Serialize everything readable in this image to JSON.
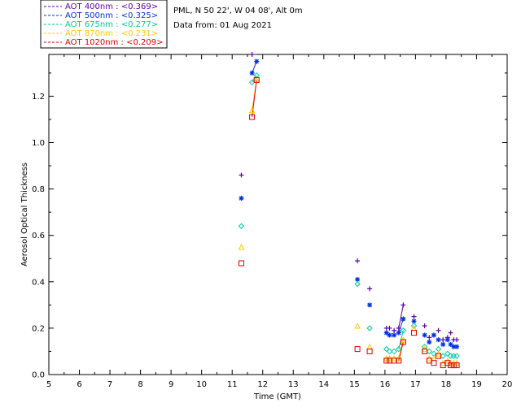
{
  "chart_data": {
    "type": "scatter",
    "title": "",
    "xlabel": "Time (GMT)",
    "ylabel": "Aerosol Optical Thickness",
    "xlim": [
      5,
      20
    ],
    "ylim": [
      0,
      1.38
    ],
    "xticks": [
      "5",
      "6",
      "7",
      "8",
      "9",
      "10",
      "11",
      "12",
      "13",
      "14",
      "15",
      "16",
      "17",
      "18",
      "19",
      "20"
    ],
    "yticks": [
      "0.0",
      "0.2",
      "0.4",
      "0.6",
      "0.8",
      "1.0",
      "1.2"
    ],
    "site_info": "PML, N 50 22', W 04 08', Alt 0m",
    "date_info": "Data from: 01 Aug 2021",
    "series": [
      {
        "name": "AOT  400nm : <0.369>",
        "color": "#5a00a8",
        "marker": "plus",
        "points": [
          [
            11.3,
            0.86
          ],
          [
            11.65,
            1.38
          ],
          [
            11.8,
            1.39
          ],
          [
            15.1,
            0.49
          ],
          [
            15.5,
            0.37
          ],
          [
            16.05,
            0.2
          ],
          [
            16.15,
            0.2
          ],
          [
            16.3,
            0.19
          ],
          [
            16.45,
            0.2
          ],
          [
            16.6,
            0.3
          ],
          [
            16.95,
            0.25
          ],
          [
            17.3,
            0.21
          ],
          [
            17.45,
            0.16
          ],
          [
            17.6,
            0.17
          ],
          [
            17.75,
            0.19
          ],
          [
            17.9,
            0.15
          ],
          [
            18.05,
            0.16
          ],
          [
            18.15,
            0.18
          ],
          [
            18.25,
            0.15
          ],
          [
            18.35,
            0.15
          ]
        ],
        "lines": [
          [
            [
              11.65,
              1.38
            ],
            [
              11.8,
              1.39
            ]
          ],
          [
            [
              16.45,
              0.2
            ],
            [
              16.6,
              0.3
            ]
          ]
        ]
      },
      {
        "name": "AOT  500nm : <0.325>",
        "color": "#0033e0",
        "marker": "asterisk",
        "points": [
          [
            11.3,
            0.76
          ],
          [
            11.65,
            1.3
          ],
          [
            11.8,
            1.35
          ],
          [
            15.1,
            0.41
          ],
          [
            15.5,
            0.3
          ],
          [
            16.05,
            0.18
          ],
          [
            16.15,
            0.17
          ],
          [
            16.3,
            0.17
          ],
          [
            16.45,
            0.18
          ],
          [
            16.6,
            0.24
          ],
          [
            16.95,
            0.23
          ],
          [
            17.3,
            0.17
          ],
          [
            17.45,
            0.14
          ],
          [
            17.6,
            0.17
          ],
          [
            17.75,
            0.15
          ],
          [
            17.9,
            0.13
          ],
          [
            18.05,
            0.15
          ],
          [
            18.15,
            0.13
          ],
          [
            18.25,
            0.12
          ],
          [
            18.35,
            0.12
          ]
        ],
        "lines": [
          [
            [
              11.65,
              1.3
            ],
            [
              11.8,
              1.35
            ]
          ],
          [
            [
              16.45,
              0.18
            ],
            [
              16.6,
              0.24
            ]
          ]
        ]
      },
      {
        "name": "AOT  675nm : <0.277>",
        "color": "#00c8a0",
        "marker": "diamond",
        "points": [
          [
            11.3,
            0.64
          ],
          [
            11.65,
            1.26
          ],
          [
            11.8,
            1.29
          ],
          [
            15.1,
            0.39
          ],
          [
            15.5,
            0.2
          ],
          [
            16.05,
            0.11
          ],
          [
            16.15,
            0.1
          ],
          [
            16.3,
            0.1
          ],
          [
            16.45,
            0.11
          ],
          [
            16.6,
            0.19
          ],
          [
            16.95,
            0.21
          ],
          [
            17.3,
            0.12
          ],
          [
            17.45,
            0.1
          ],
          [
            17.6,
            0.09
          ],
          [
            17.75,
            0.11
          ],
          [
            17.9,
            0.08
          ],
          [
            18.05,
            0.09
          ],
          [
            18.15,
            0.08
          ],
          [
            18.25,
            0.08
          ],
          [
            18.35,
            0.08
          ]
        ],
        "lines": [
          [
            [
              11.65,
              1.26
            ],
            [
              11.8,
              1.29
            ]
          ],
          [
            [
              16.45,
              0.11
            ],
            [
              16.6,
              0.19
            ]
          ]
        ]
      },
      {
        "name": "AOT  870nm : <0.231>",
        "color": "#ffc800",
        "marker": "triangle",
        "points": [
          [
            11.3,
            0.55
          ],
          [
            11.65,
            1.14
          ],
          [
            11.8,
            1.27
          ],
          [
            15.1,
            0.21
          ],
          [
            15.5,
            0.12
          ],
          [
            16.05,
            0.07
          ],
          [
            16.15,
            0.07
          ],
          [
            16.3,
            0.07
          ],
          [
            16.45,
            0.07
          ],
          [
            16.6,
            0.15
          ],
          [
            16.95,
            0.2
          ],
          [
            17.3,
            0.11
          ],
          [
            17.45,
            0.07
          ],
          [
            17.6,
            0.07
          ],
          [
            17.75,
            0.09
          ],
          [
            17.9,
            0.05
          ],
          [
            18.05,
            0.06
          ],
          [
            18.15,
            0.05
          ],
          [
            18.25,
            0.05
          ],
          [
            18.35,
            0.05
          ]
        ],
        "lines": [
          [
            [
              11.65,
              1.14
            ],
            [
              11.8,
              1.27
            ]
          ],
          [
            [
              16.45,
              0.07
            ],
            [
              16.6,
              0.15
            ]
          ]
        ]
      },
      {
        "name": "AOT 1020nm : <0.209>",
        "color": "#e00000",
        "marker": "square",
        "points": [
          [
            11.3,
            0.48
          ],
          [
            11.65,
            1.11
          ],
          [
            11.8,
            1.27
          ],
          [
            15.1,
            0.11
          ],
          [
            15.5,
            0.1
          ],
          [
            16.05,
            0.06
          ],
          [
            16.15,
            0.06
          ],
          [
            16.3,
            0.06
          ],
          [
            16.45,
            0.06
          ],
          [
            16.6,
            0.14
          ],
          [
            16.95,
            0.18
          ],
          [
            17.3,
            0.1
          ],
          [
            17.45,
            0.06
          ],
          [
            17.6,
            0.05
          ],
          [
            17.75,
            0.08
          ],
          [
            17.9,
            0.04
          ],
          [
            18.05,
            0.05
          ],
          [
            18.15,
            0.04
          ],
          [
            18.25,
            0.04
          ],
          [
            18.35,
            0.04
          ]
        ],
        "lines": [
          [
            [
              11.65,
              1.11
            ],
            [
              11.8,
              1.27
            ]
          ],
          [
            [
              16.45,
              0.06
            ],
            [
              16.6,
              0.14
            ]
          ]
        ]
      }
    ]
  }
}
